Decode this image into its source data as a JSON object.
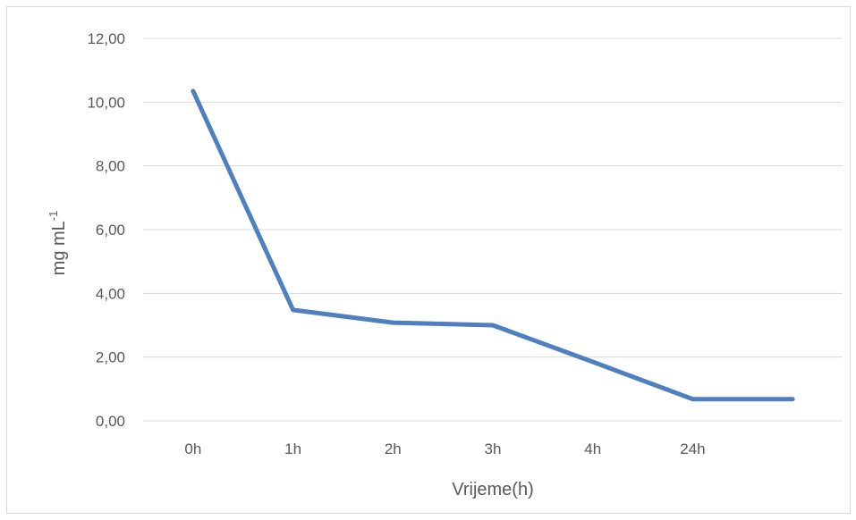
{
  "chart_data": {
    "type": "line",
    "categories": [
      "0h",
      "1h",
      "2h",
      "3h",
      "4h",
      "24h",
      ""
    ],
    "series": [
      {
        "values": [
          10.35,
          3.48,
          3.08,
          3.0,
          1.85,
          0.68,
          0.68
        ]
      }
    ],
    "xlabel": "Vrijeme(h)",
    "ylabel": {
      "base": "mg mL",
      "superscript": "-1"
    },
    "ylim": [
      0,
      12
    ],
    "yticks": [
      "0,00",
      "2,00",
      "4,00",
      "6,00",
      "8,00",
      "10,00",
      "12,00"
    ],
    "grid": true,
    "legend": "none",
    "colors": {
      "line": "#4f7fbe",
      "grid": "#d9d9d9",
      "text": "#595959"
    }
  }
}
